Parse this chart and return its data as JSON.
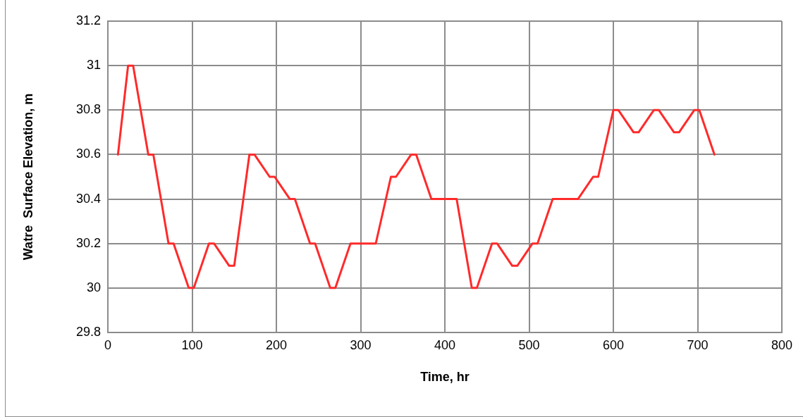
{
  "chart_data": {
    "type": "line",
    "xlabel": "Time, hr",
    "ylabel": "Watre  Surface Elevation, m",
    "x": [
      12,
      24,
      30,
      48,
      54,
      72,
      78,
      96,
      102,
      120,
      126,
      144,
      150,
      168,
      174,
      192,
      198,
      216,
      222,
      240,
      246,
      264,
      270,
      288,
      318,
      336,
      342,
      360,
      366,
      384,
      414,
      432,
      438,
      456,
      462,
      480,
      486,
      504,
      510,
      528,
      558,
      576,
      582,
      600,
      606,
      624,
      630,
      648,
      654,
      672,
      678,
      696,
      702,
      720
    ],
    "series": [
      {
        "color": "#ff2a2a",
        "values": [
          30.6,
          31,
          31,
          30.6,
          30.6,
          30.2,
          30.2,
          30,
          30,
          30.2,
          30.2,
          30.1,
          30.1,
          30.6,
          30.6,
          30.5,
          30.5,
          30.4,
          30.4,
          30.2,
          30.2,
          30,
          30,
          30.2,
          30.2,
          30.5,
          30.5,
          30.6,
          30.6,
          30.4,
          30.4,
          30,
          30,
          30.2,
          30.2,
          30.1,
          30.1,
          30.2,
          30.2,
          30.4,
          30.4,
          30.5,
          30.5,
          30.8,
          30.8,
          30.7,
          30.7,
          30.8,
          30.8,
          30.7,
          30.7,
          30.8,
          30.8,
          30.6
        ]
      }
    ],
    "xlim": [
      0,
      800
    ],
    "xticks": [
      0,
      100,
      200,
      300,
      400,
      500,
      600,
      700,
      800
    ],
    "ylim": [
      29.8,
      31.2
    ],
    "yticks": [
      29.8,
      30,
      30.2,
      30.4,
      30.6,
      30.8,
      31,
      31.2
    ],
    "grid": true,
    "legend": false,
    "marker": "none",
    "line_style": "solid"
  }
}
